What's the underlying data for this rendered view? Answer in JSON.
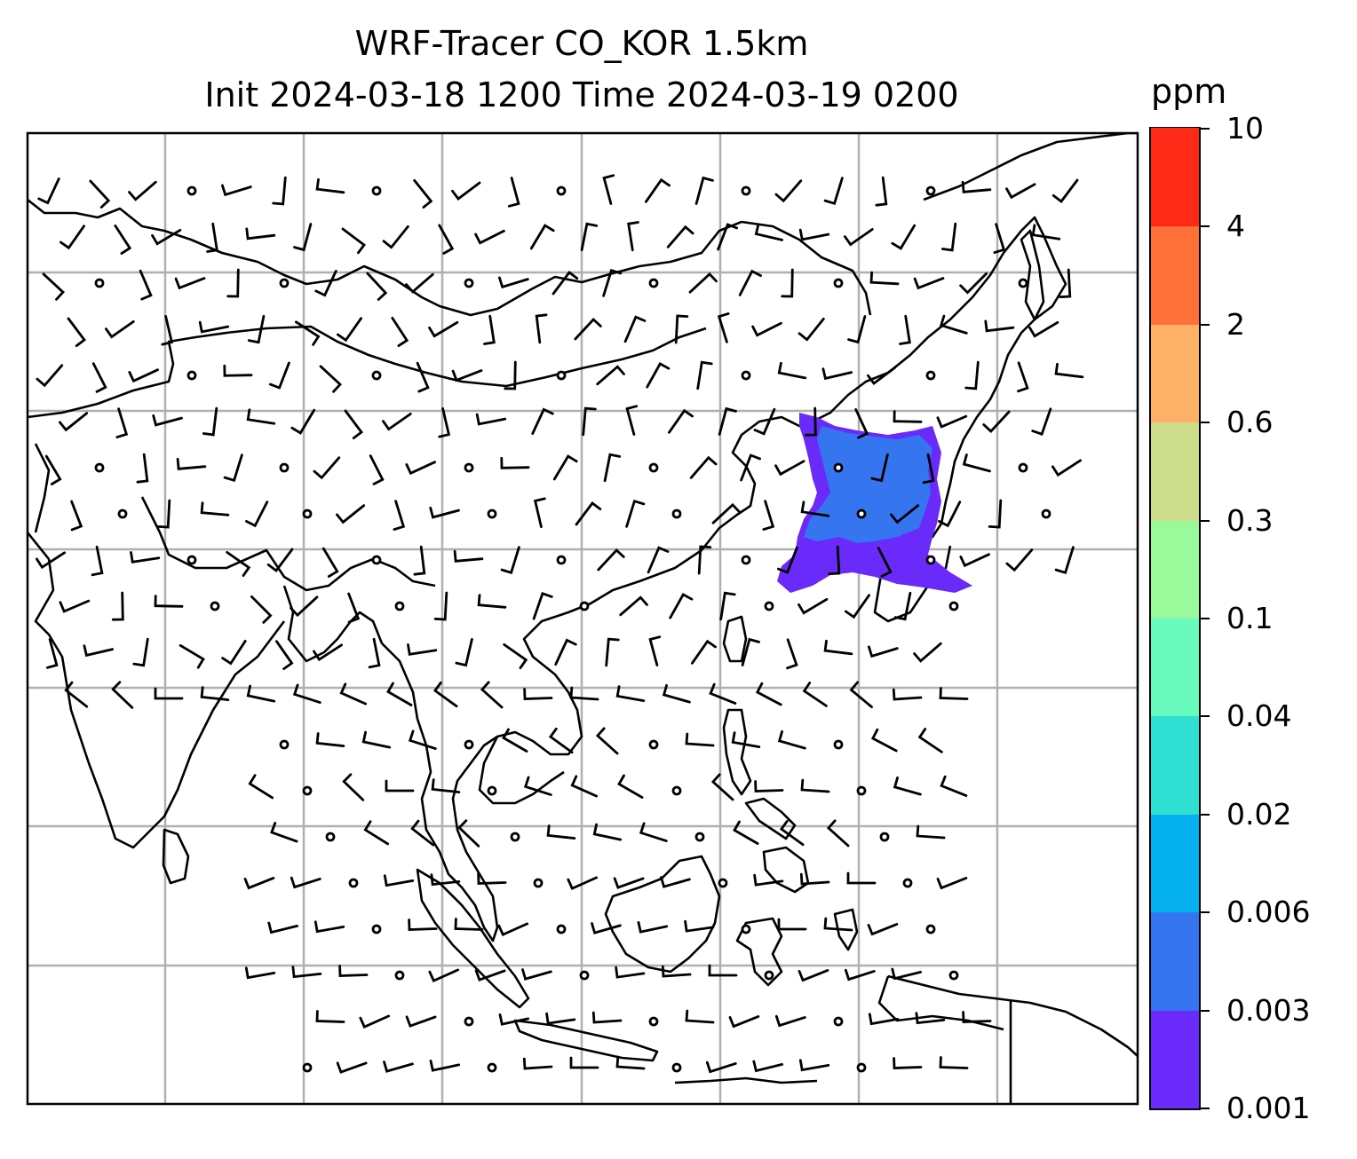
{
  "title": {
    "line1": "WRF-Tracer CO_KOR 1.5km",
    "line2": "Init 2024-03-18 1200 Time 2024-03-19 0200"
  },
  "colorbar": {
    "unit": "ppm",
    "labels": [
      "0.001",
      "0.003",
      "0.006",
      "0.02",
      "0.04",
      "0.1",
      "0.3",
      "0.6",
      "2",
      "4",
      "10"
    ],
    "colors": [
      "#6a2afa",
      "#3575f0",
      "#05b0ee",
      "#2fe0d2",
      "#69fbbd",
      "#9af99b",
      "#cddc8b",
      "#fdb067",
      "#fd7038",
      "#fe2a18"
    ]
  },
  "map": {
    "gridlines": "on",
    "plume_colors": [
      "#6a2afa",
      "#3575f0"
    ]
  }
}
